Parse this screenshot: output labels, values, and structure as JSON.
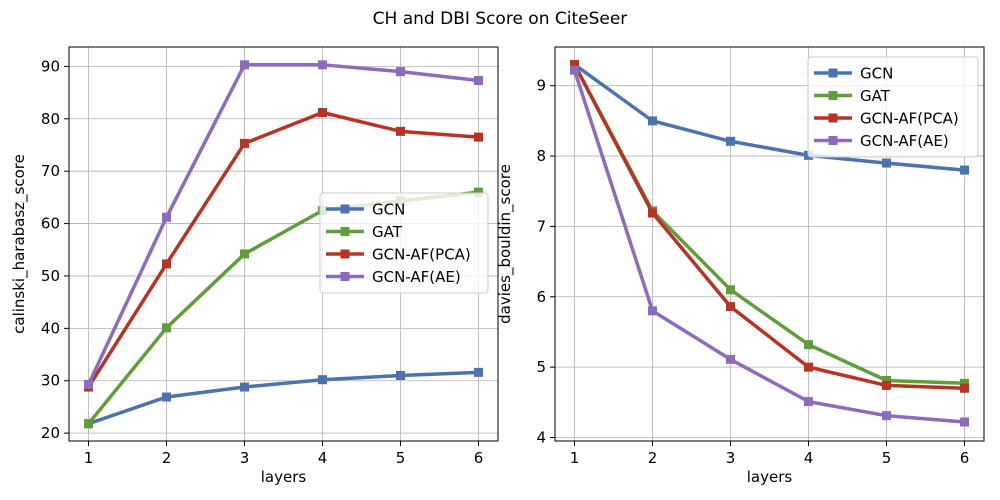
{
  "figure": {
    "title": "CH and DBI Score on CiteSeer"
  },
  "chart_data": [
    {
      "type": "line",
      "title": "",
      "xlabel": "layers",
      "ylabel": "calinski_harabasz_score",
      "x": [
        1,
        2,
        3,
        4,
        5,
        6
      ],
      "xticks": [
        "1",
        "2",
        "3",
        "4",
        "5",
        "6"
      ],
      "xlim": [
        0.75,
        6.25
      ],
      "ylim": [
        18.5,
        93.7
      ],
      "yticks": [
        "20",
        "30",
        "40",
        "50",
        "60",
        "70",
        "80",
        "90"
      ],
      "ytick_values": [
        20,
        30,
        40,
        50,
        60,
        70,
        80,
        90
      ],
      "grid": true,
      "legend_position": "center-right",
      "series": [
        {
          "name": "GCN",
          "color": "#4c72b0",
          "values": [
            21.8,
            26.9,
            28.8,
            30.2,
            31.0,
            31.6
          ]
        },
        {
          "name": "GAT",
          "color": "#5f9e3a",
          "values": [
            21.8,
            40.1,
            54.2,
            62.5,
            64.3,
            66.0
          ]
        },
        {
          "name": "GCN-AF(PCA)",
          "color": "#b83323",
          "values": [
            28.8,
            52.3,
            75.3,
            81.2,
            77.6,
            76.5
          ]
        },
        {
          "name": "GCN-AF(AE)",
          "color": "#8c6bbd",
          "values": [
            29.3,
            61.2,
            90.3,
            90.3,
            89.0,
            87.3
          ]
        }
      ]
    },
    {
      "type": "line",
      "title": "",
      "xlabel": "layers",
      "ylabel": "davies_bouldin_score",
      "x": [
        1,
        2,
        3,
        4,
        5,
        6
      ],
      "xticks": [
        "1",
        "2",
        "3",
        "4",
        "5",
        "6"
      ],
      "xlim": [
        0.75,
        6.25
      ],
      "ylim": [
        3.95,
        9.55
      ],
      "yticks": [
        "4",
        "5",
        "6",
        "7",
        "8",
        "9"
      ],
      "ytick_values": [
        4,
        5,
        6,
        7,
        8,
        9
      ],
      "grid": true,
      "legend_position": "top-right",
      "series": [
        {
          "name": "GCN",
          "color": "#4c72b0",
          "values": [
            9.3,
            8.5,
            8.21,
            8.01,
            7.9,
            7.8
          ]
        },
        {
          "name": "GAT",
          "color": "#5f9e3a",
          "values": [
            9.3,
            7.22,
            6.1,
            5.32,
            4.81,
            4.77
          ]
        },
        {
          "name": "GCN-AF(PCA)",
          "color": "#b83323",
          "values": [
            9.3,
            7.19,
            5.86,
            5.0,
            4.74,
            4.7
          ]
        },
        {
          "name": "GCN-AF(AE)",
          "color": "#8c6bbd",
          "values": [
            9.22,
            5.8,
            5.11,
            4.51,
            4.31,
            4.22
          ]
        }
      ]
    }
  ]
}
